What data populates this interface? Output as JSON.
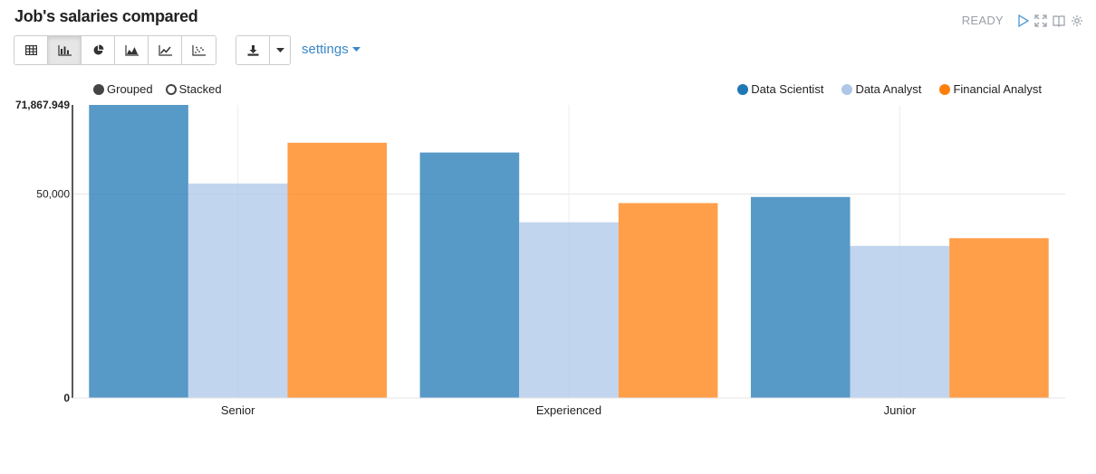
{
  "title": "Job's salaries compared",
  "status": {
    "ready": "READY"
  },
  "toolbar": {
    "buttons": [
      {
        "name": "table-view-button",
        "icon": "table-icon"
      },
      {
        "name": "bar-chart-button",
        "icon": "bar-chart-icon",
        "active": true
      },
      {
        "name": "pie-chart-button",
        "icon": "pie-chart-icon"
      },
      {
        "name": "area-chart-button",
        "icon": "area-chart-icon"
      },
      {
        "name": "line-chart-button",
        "icon": "line-chart-icon"
      },
      {
        "name": "scatter-chart-button",
        "icon": "scatter-chart-icon"
      }
    ],
    "settings_label": "settings"
  },
  "mode": {
    "grouped": "Grouped",
    "stacked": "Stacked",
    "selected": "grouped"
  },
  "colors": {
    "Data Scientist": "#1f77b4",
    "Data Analyst": "#aec7e8",
    "Financial Analyst": "#ff7f0e"
  },
  "chart_data": {
    "type": "bar",
    "categories": [
      "Senior",
      "Experienced",
      "Junior"
    ],
    "series": [
      {
        "name": "Data Scientist",
        "values": [
          71867.949,
          60200,
          49300
        ]
      },
      {
        "name": "Data Analyst",
        "values": [
          52600,
          43100,
          37300
        ]
      },
      {
        "name": "Financial Analyst",
        "values": [
          62600,
          47800,
          39200
        ]
      }
    ],
    "ylim": [
      0,
      71867.949
    ],
    "yticks": [
      0,
      50000
    ],
    "ytick_labels": [
      "0",
      "50,000"
    ],
    "ymax_label": "71,867.949",
    "grid": true,
    "legend": "top-right"
  }
}
